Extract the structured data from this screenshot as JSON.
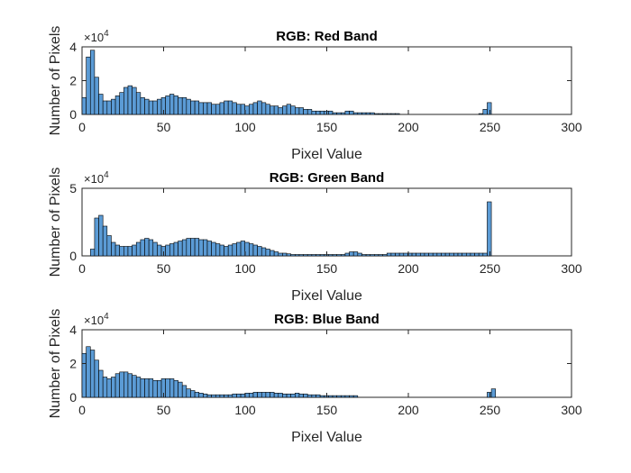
{
  "figure": {
    "background": "#ffffff",
    "bar_color": "#5b9bd5",
    "bar_edge": "#000000"
  },
  "chart_data": [
    {
      "type": "bar",
      "title": "RGB: Red Band",
      "xlabel": "Pixel Value",
      "ylabel": "Number of Pixels",
      "exponent_label": "×10",
      "exponent_power": "4",
      "xlim": [
        0,
        300
      ],
      "ylim": [
        0,
        4
      ],
      "xticks": [
        "0",
        "50",
        "100",
        "150",
        "200",
        "250",
        "300"
      ],
      "yticks": [
        "0",
        "2",
        "4"
      ],
      "bin_width": 2.56,
      "values": [
        1.0,
        3.4,
        3.8,
        2.2,
        1.2,
        0.8,
        0.8,
        0.9,
        1.1,
        1.3,
        1.6,
        1.7,
        1.6,
        1.3,
        1.0,
        0.9,
        0.8,
        0.8,
        0.9,
        1.0,
        1.1,
        1.2,
        1.1,
        1.0,
        1.0,
        0.9,
        0.8,
        0.8,
        0.7,
        0.7,
        0.7,
        0.6,
        0.6,
        0.7,
        0.8,
        0.8,
        0.7,
        0.6,
        0.6,
        0.5,
        0.6,
        0.7,
        0.8,
        0.7,
        0.6,
        0.5,
        0.5,
        0.4,
        0.5,
        0.6,
        0.5,
        0.4,
        0.4,
        0.3,
        0.3,
        0.2,
        0.2,
        0.2,
        0.2,
        0.2,
        0.1,
        0.1,
        0.1,
        0.2,
        0.2,
        0.1,
        0.1,
        0.1,
        0.1,
        0.1,
        0.05,
        0.05,
        0.05,
        0.05,
        0.05,
        0.05,
        0,
        0,
        0,
        0,
        0,
        0,
        0,
        0,
        0,
        0,
        0,
        0,
        0,
        0,
        0,
        0,
        0,
        0,
        0,
        0.05,
        0.3,
        0.7,
        0,
        0,
        0,
        0
      ]
    },
    {
      "type": "bar",
      "title": "RGB: Green Band",
      "xlabel": "Pixel Value",
      "ylabel": "Number of Pixels",
      "exponent_label": "×10",
      "exponent_power": "4",
      "xlim": [
        0,
        300
      ],
      "ylim": [
        0,
        5
      ],
      "xticks": [
        "0",
        "50",
        "100",
        "150",
        "200",
        "250",
        "300"
      ],
      "yticks": [
        "0",
        "5"
      ],
      "bin_width": 2.56,
      "values": [
        0,
        0,
        0.5,
        2.8,
        3.0,
        2.2,
        1.5,
        1.0,
        0.8,
        0.7,
        0.7,
        0.7,
        0.8,
        1.0,
        1.2,
        1.3,
        1.2,
        1.0,
        0.8,
        0.7,
        0.8,
        0.9,
        1.0,
        1.1,
        1.2,
        1.3,
        1.3,
        1.3,
        1.2,
        1.2,
        1.1,
        1.0,
        0.9,
        0.8,
        0.7,
        0.8,
        0.9,
        1.0,
        1.1,
        1.0,
        0.9,
        0.8,
        0.7,
        0.6,
        0.5,
        0.4,
        0.3,
        0.2,
        0.2,
        0.15,
        0.1,
        0.1,
        0.1,
        0.1,
        0.1,
        0.1,
        0.1,
        0.1,
        0.1,
        0.1,
        0.1,
        0.1,
        0.1,
        0.2,
        0.3,
        0.3,
        0.2,
        0.1,
        0.1,
        0.1,
        0.1,
        0.1,
        0.1,
        0.2,
        0.2,
        0.2,
        0.2,
        0.2,
        0.2,
        0.2,
        0.2,
        0.2,
        0.2,
        0.2,
        0.2,
        0.2,
        0.2,
        0.2,
        0.2,
        0.2,
        0.2,
        0.2,
        0.2,
        0.2,
        0.2,
        0.2,
        0.2,
        4.0,
        0,
        0,
        0,
        0
      ]
    },
    {
      "type": "bar",
      "title": "RGB: Blue Band",
      "xlabel": "Pixel Value",
      "ylabel": "Number of Pixels",
      "exponent_label": "×10",
      "exponent_power": "4",
      "xlim": [
        0,
        300
      ],
      "ylim": [
        0,
        4
      ],
      "xticks": [
        "0",
        "50",
        "100",
        "150",
        "200",
        "250",
        "300"
      ],
      "yticks": [
        "0",
        "2",
        "4"
      ],
      "bin_width": 2.56,
      "values": [
        2.6,
        3.0,
        2.8,
        2.2,
        1.6,
        1.2,
        1.1,
        1.2,
        1.4,
        1.5,
        1.5,
        1.4,
        1.3,
        1.2,
        1.1,
        1.1,
        1.1,
        1.0,
        1.0,
        1.1,
        1.1,
        1.1,
        1.0,
        0.9,
        0.7,
        0.5,
        0.4,
        0.3,
        0.25,
        0.2,
        0.15,
        0.15,
        0.15,
        0.15,
        0.15,
        0.15,
        0.2,
        0.2,
        0.2,
        0.25,
        0.25,
        0.3,
        0.3,
        0.3,
        0.3,
        0.3,
        0.25,
        0.25,
        0.2,
        0.2,
        0.2,
        0.25,
        0.2,
        0.2,
        0.15,
        0.15,
        0.15,
        0.1,
        0.1,
        0.1,
        0.1,
        0.1,
        0.1,
        0.1,
        0.1,
        0.1,
        0,
        0,
        0,
        0,
        0,
        0,
        0,
        0,
        0,
        0,
        0,
        0,
        0,
        0,
        0,
        0,
        0,
        0,
        0,
        0,
        0,
        0,
        0,
        0,
        0,
        0,
        0,
        0,
        0,
        0,
        0,
        0.3,
        0.5,
        0,
        0,
        0,
        0
      ]
    }
  ]
}
